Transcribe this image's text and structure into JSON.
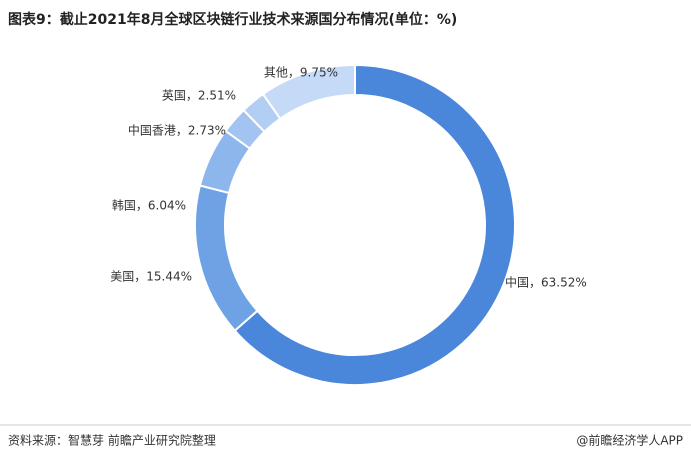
{
  "chart_data": {
    "type": "pie",
    "title": "图表9：截止2021年8月全球区块链行业技术来源国分布情况(单位：%)",
    "values": [
      63.52,
      15.44,
      6.04,
      2.73,
      2.51,
      9.75
    ],
    "value_labels": [
      "中国，63.52%",
      "美国，15.44%",
      "韩国，6.04%",
      "中国香港，2.73%",
      "英国，2.51%",
      "其他，9.75%"
    ],
    "colors": [
      "#4a86d9",
      "#6ea2e5",
      "#8db6ec",
      "#a3c4f0",
      "#b2cef3",
      "#c4daf6"
    ],
    "source": "资料来源：智慧芽 前瞻产业研究院整理",
    "credit": "@前瞻经济学人APP"
  }
}
